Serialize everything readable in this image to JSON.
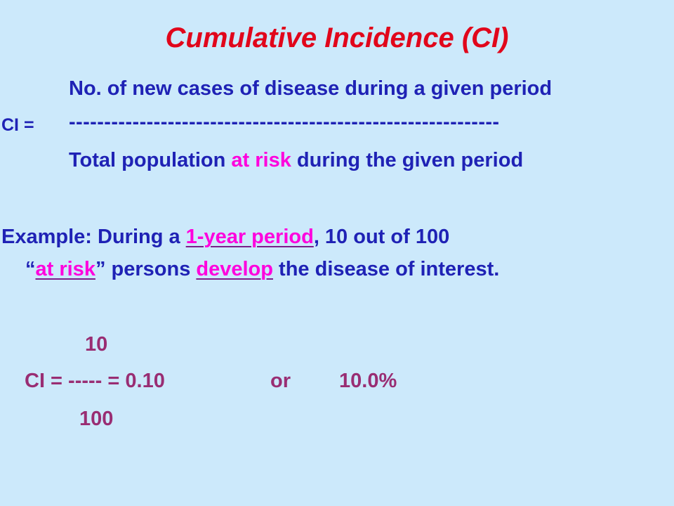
{
  "slide": {
    "title": "Cumulative Incidence (CI)",
    "formula": {
      "numerator": "No. of new cases of disease during a given period",
      "lhs": "CI =",
      "divider": "-------------------------------------------------------------",
      "denominator_pre": "Total population ",
      "denominator_highlight": "at risk",
      "denominator_post": " during the given period"
    },
    "example": {
      "line1_pre": "Example:  During a ",
      "line1_link": "1-year period",
      "line1_post": ", 10 out of 100",
      "line2_quote_open": "“",
      "line2_link1": "at risk",
      "line2_mid": "” persons ",
      "line2_link2": "develop",
      "line2_post": " the disease of interest."
    },
    "calculation": {
      "numerator": "10",
      "expression": "CI = -----  = 0.10",
      "or": "or",
      "percent": "10.0%",
      "denominator": "100"
    },
    "colors": {
      "background": "#cce9fb",
      "title": "#e1061b",
      "body": "#1f22b5",
      "highlight": "#ff00dd",
      "calc": "#992d73"
    }
  }
}
